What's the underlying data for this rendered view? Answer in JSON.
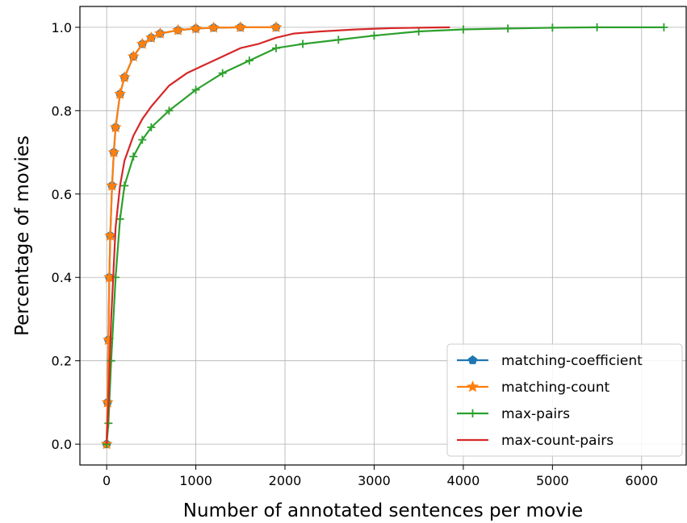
{
  "chart_data": {
    "type": "line",
    "xlabel": "Number of annotated sentences per movie",
    "ylabel": "Percentage of movies",
    "xlim": [
      -300,
      6500
    ],
    "ylim": [
      -0.05,
      1.05
    ],
    "xticks": [
      0,
      1000,
      2000,
      3000,
      4000,
      5000,
      6000
    ],
    "yticks": [
      0.0,
      0.2,
      0.4,
      0.6,
      0.8,
      1.0
    ],
    "xtick_labels": [
      "0",
      "1000",
      "2000",
      "3000",
      "4000",
      "5000",
      "6000"
    ],
    "ytick_labels": [
      "0.0",
      "0.2",
      "0.4",
      "0.6",
      "0.8",
      "1.0"
    ],
    "grid": true,
    "legend_position": "lower-right",
    "series": [
      {
        "name": "matching-coefficient",
        "color": "#1f77b4",
        "marker": "pentagon",
        "x": [
          0,
          10,
          20,
          30,
          40,
          60,
          80,
          100,
          150,
          200,
          300,
          400,
          500,
          600,
          800,
          1000,
          1200,
          1500,
          1900
        ],
        "y": [
          0.0,
          0.1,
          0.25,
          0.4,
          0.5,
          0.62,
          0.7,
          0.76,
          0.84,
          0.88,
          0.93,
          0.96,
          0.975,
          0.985,
          0.993,
          0.997,
          0.999,
          1.0,
          1.0
        ]
      },
      {
        "name": "matching-count",
        "color": "#ff7f0e",
        "marker": "star",
        "x": [
          0,
          10,
          20,
          30,
          40,
          60,
          80,
          100,
          150,
          200,
          300,
          400,
          500,
          600,
          800,
          1000,
          1200,
          1500,
          1900
        ],
        "y": [
          0.0,
          0.1,
          0.25,
          0.4,
          0.5,
          0.62,
          0.7,
          0.76,
          0.84,
          0.88,
          0.93,
          0.96,
          0.975,
          0.985,
          0.993,
          0.997,
          0.999,
          1.0,
          1.0
        ]
      },
      {
        "name": "max-pairs",
        "color": "#2ca02c",
        "marker": "plus",
        "x": [
          0,
          20,
          50,
          100,
          150,
          200,
          300,
          400,
          500,
          700,
          1000,
          1300,
          1600,
          1900,
          2200,
          2600,
          3000,
          3500,
          4000,
          4500,
          5000,
          5500,
          6250
        ],
        "y": [
          0.0,
          0.05,
          0.2,
          0.4,
          0.54,
          0.62,
          0.69,
          0.73,
          0.76,
          0.8,
          0.85,
          0.89,
          0.92,
          0.95,
          0.96,
          0.97,
          0.98,
          0.99,
          0.995,
          0.997,
          0.999,
          1.0,
          1.0
        ]
      },
      {
        "name": "max-count-pairs",
        "color": "#d62728",
        "marker": "none",
        "x": [
          0,
          20,
          50,
          100,
          150,
          200,
          300,
          400,
          500,
          700,
          900,
          1100,
          1300,
          1500,
          1700,
          1900,
          2100,
          2400,
          2800,
          3200,
          3500,
          3850
        ],
        "y": [
          0.0,
          0.1,
          0.3,
          0.52,
          0.62,
          0.68,
          0.74,
          0.78,
          0.81,
          0.86,
          0.89,
          0.91,
          0.93,
          0.95,
          0.96,
          0.975,
          0.985,
          0.99,
          0.995,
          0.998,
          0.999,
          1.0
        ]
      }
    ]
  }
}
